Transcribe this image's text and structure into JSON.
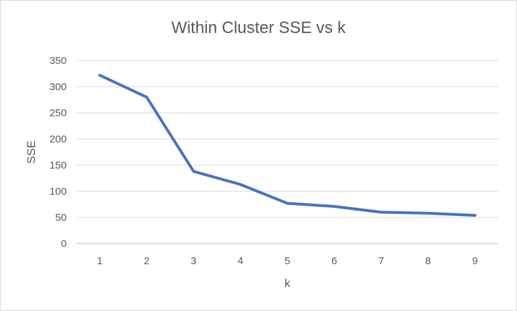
{
  "chart_data": {
    "type": "line",
    "title": "Within Cluster SSE vs k",
    "xlabel": "k",
    "ylabel": "SSE",
    "x": [
      1,
      2,
      3,
      4,
      5,
      6,
      7,
      8,
      9
    ],
    "series": [
      {
        "values": [
          322,
          280,
          138,
          113,
          77,
          71,
          60,
          58,
          54
        ]
      }
    ],
    "ylim": [
      0,
      350
    ],
    "yticks": [
      0,
      50,
      100,
      150,
      200,
      250,
      300,
      350
    ],
    "grid": true,
    "legend": "none",
    "colors": {
      "line": "#4472C4",
      "grid": "#d9d9d9",
      "axis": "#bfbfbf",
      "text": "#595959"
    }
  }
}
